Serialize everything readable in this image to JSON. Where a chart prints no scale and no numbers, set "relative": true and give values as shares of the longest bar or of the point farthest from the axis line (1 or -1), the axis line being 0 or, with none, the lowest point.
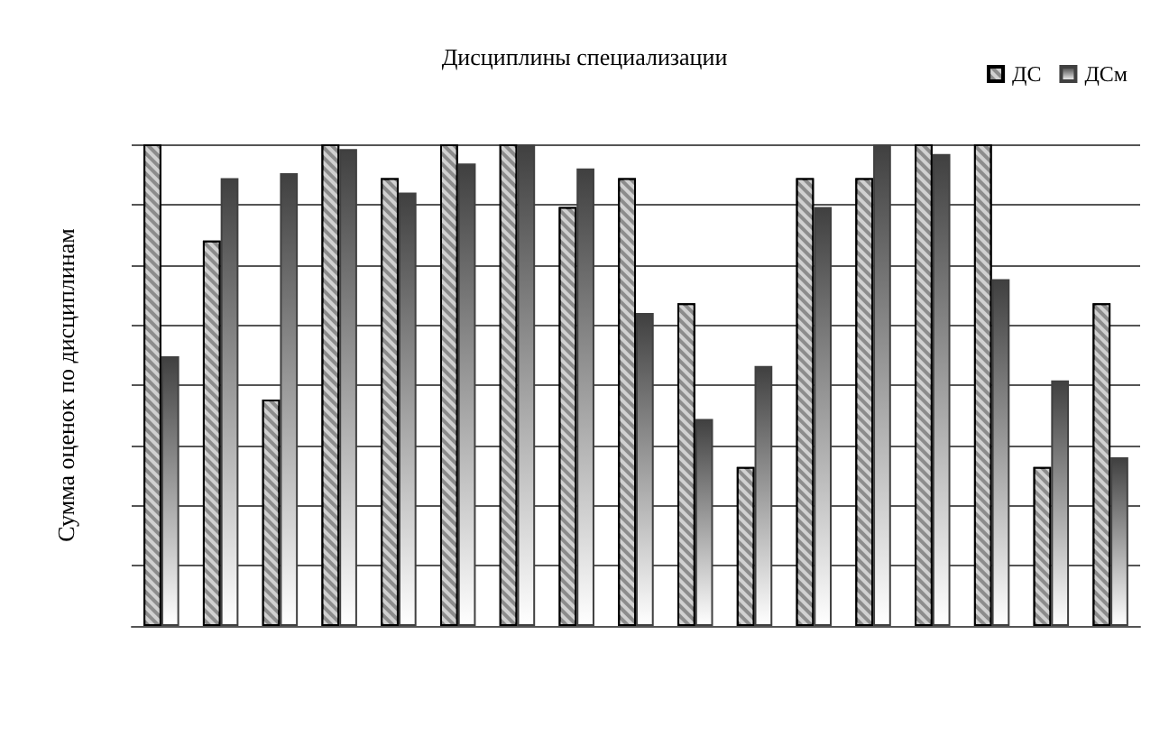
{
  "chart_data": {
    "type": "bar",
    "title": "Дисциплины специализации",
    "ylabel": "Сумма оценок по дисциплинам",
    "relative": true,
    "grid": "y",
    "legend": "top right",
    "categories": [
      null,
      null,
      null,
      null,
      null,
      null,
      null,
      null,
      null,
      null,
      null,
      null,
      null,
      null,
      null,
      null,
      null
    ],
    "series": [
      {
        "name": "ДС",
        "color": "#8c8c8c",
        "values": [
          1,
          0.8,
          0.47,
          1,
          0.93,
          1,
          1,
          0.87,
          0.93,
          0.67,
          0.33,
          0.93,
          0.93,
          1,
          1,
          0.33,
          0.67
        ]
      },
      {
        "name": "ДСм",
        "color": "#404040",
        "values": [
          0.56,
          0.93,
          0.94,
          0.99,
          0.9,
          0.96,
          1,
          0.95,
          0.65,
          0.43,
          0.54,
          0.87,
          1,
          0.98,
          0.72,
          0.51,
          0.35
        ]
      }
    ]
  }
}
